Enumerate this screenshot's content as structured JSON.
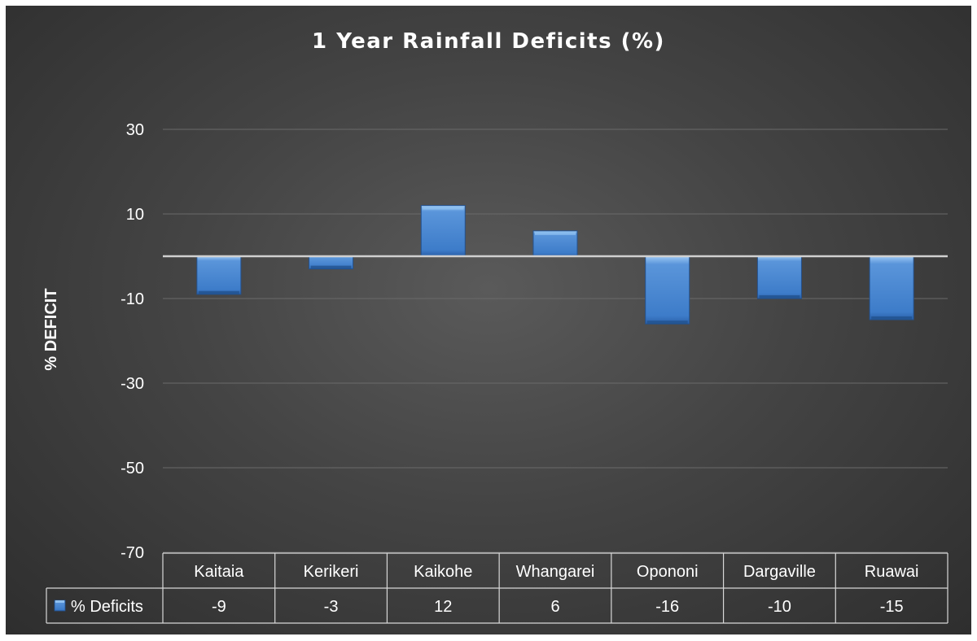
{
  "chart_data": {
    "type": "bar",
    "title": "1 Year Rainfall Deficits (%)",
    "ylabel": "% DEFICIT",
    "xlabel": "",
    "categories": [
      "Kaitaia",
      "Kerikeri",
      "Kaikohe",
      "Whangarei",
      "Opononi",
      "Dargaville",
      "Ruawai"
    ],
    "series": [
      {
        "name": "% Deficits",
        "values": [
          -9,
          -3,
          12,
          6,
          -16,
          -10,
          -15
        ]
      }
    ],
    "value_labels": [
      "-9",
      "-3",
      "12",
      "6",
      "-16",
      "-10",
      "-15"
    ],
    "ylim": [
      -70,
      30
    ],
    "yticks": [
      30,
      10,
      -10,
      -30,
      -50,
      -70
    ],
    "ytick_labels": [
      "30",
      "10",
      "-10",
      "-30",
      "-50",
      "-70"
    ],
    "grid": true,
    "data_table": true,
    "colors": {
      "bar": "#4a86d0",
      "bar_dark": "#2a5fa8",
      "bar_light": "#8fc0f0",
      "background": "#3c3c3c",
      "gridline": "#6a6a6a",
      "zero_line": "#d0d0d0",
      "text": "#ffffff"
    }
  }
}
